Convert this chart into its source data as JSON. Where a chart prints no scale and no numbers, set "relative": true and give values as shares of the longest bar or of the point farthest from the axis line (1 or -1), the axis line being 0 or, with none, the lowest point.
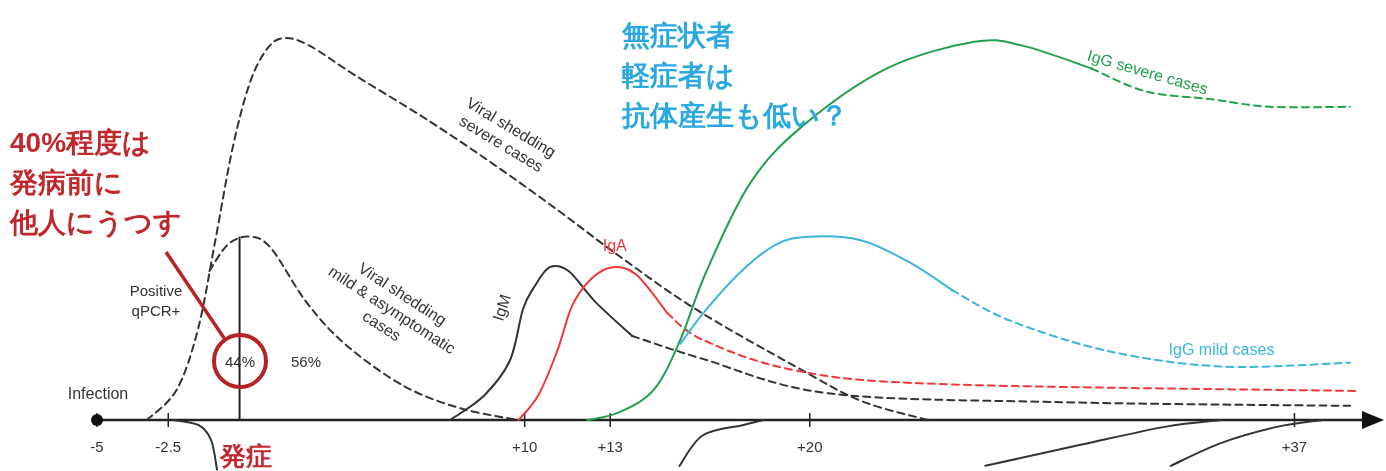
{
  "chart_data": {
    "type": "line",
    "relative": true,
    "xlim": [
      -5,
      40
    ],
    "xticks": [
      -5,
      -2.5,
      {
        "value": 10,
        "label": "+10"
      },
      {
        "value": 13,
        "label": "+13"
      },
      {
        "value": 20,
        "label": "+20"
      },
      {
        "value": 37,
        "label": "+37"
      }
    ],
    "ref_lines": [
      {
        "axis": "x",
        "value": 0,
        "label": "発症"
      }
    ],
    "annotations": [
      "40%程度は",
      "発病前に",
      "他人にうつす",
      "無症状者",
      "軽症者は",
      "抗体産生も低い？",
      "Positive\nqPCR+",
      "44%",
      "56%",
      "Infection"
    ],
    "series": [
      {
        "name": "Viral shedding severe cases",
        "color": "#333333",
        "line_style": "dashed",
        "x": [
          -3.25,
          -2.2,
          -1.45,
          -0.85,
          -0.25,
          0.35,
          0.95,
          1.55,
          2.45,
          4.1,
          6.5,
          8.9,
          11.15,
          13.3,
          16,
          19.5,
          21.8,
          24.15
        ],
        "values": [
          0,
          0.08,
          0.24,
          0.47,
          0.71,
          0.88,
          0.97,
          1.0,
          0.98,
          0.9,
          0.79,
          0.67,
          0.55,
          0.43,
          0.29,
          0.14,
          0.05,
          0
        ]
      },
      {
        "name": "Viral shedding mild & asymptomatic cases",
        "color": "#333333",
        "line_style": "dashed",
        "x": [
          -1.06,
          -0.4,
          0.35,
          1.1,
          2.33,
          3.68,
          5.74,
          7.78,
          9.79
        ],
        "values": [
          0.39,
          0.46,
          0.48,
          0.45,
          0.31,
          0.2,
          0.09,
          0.03,
          0
        ]
      },
      {
        "name": "IgM",
        "color": "#333333",
        "line_style": "solid",
        "x": [
          7.39,
          8.59,
          9.49,
          9.94,
          10.35,
          10.88,
          11.54,
          12.47,
          13.77
        ],
        "values": [
          0,
          0.065,
          0.157,
          0.29,
          0.35,
          0.4,
          0.39,
          0.31,
          0.22
        ]
      },
      {
        "color": "#333333",
        "line_style": "dashed",
        "x": [
          13.77,
          16.25,
          20.65,
          28.54,
          38.95
        ],
        "values": [
          0.22,
          0.16,
          0.07,
          0.047,
          0.037
        ]
      },
      {
        "name": "IgA",
        "color": "#f0373c",
        "line_style": "solid",
        "x": [
          9.79,
          10.48,
          11.14,
          11.67,
          12.34,
          13.09,
          13.92,
          15.0
        ],
        "values": [
          0,
          0.065,
          0.18,
          0.3,
          0.37,
          0.4,
          0.38,
          0.28
        ]
      },
      {
        "color": "#f0373c",
        "line_style": "dashed",
        "x": [
          15.0,
          16.25,
          19.48,
          24.6,
          39.17
        ],
        "values": [
          0.28,
          0.21,
          0.13,
          0.094,
          0.076
        ]
      },
      {
        "name": "IgG severe cases",
        "color": "#22a04b",
        "line_style": "solid",
        "x": [
          12.2,
          13.31,
          14.54,
          15.46,
          16.38,
          17.91,
          19.75,
          22.69,
          25.77,
          27.46,
          29.89
        ],
        "values": [
          0,
          0.02,
          0.08,
          0.21,
          0.39,
          0.62,
          0.77,
          0.92,
          0.99,
          0.98,
          0.92
        ]
      },
      {
        "color": "#22a04b",
        "line_style": "dashed",
        "x": [
          29.89,
          31.8,
          34.05,
          36.13,
          38.95
        ],
        "values": [
          0.92,
          0.86,
          0.84,
          0.82,
          0.82
        ]
      },
      {
        "name": "IgG mild cases",
        "color": "#3cb4dc",
        "line_style": "solid",
        "x": [
          15.46,
          16.38,
          17.61,
          18.83,
          20,
          21.82,
          23.56,
          24.99
        ],
        "values": [
          0.2,
          0.29,
          0.39,
          0.46,
          0.48,
          0.47,
          0.41,
          0.34
        ]
      },
      {
        "color": "#3cb4dc",
        "line_style": "dashed",
        "x": [
          24.99,
          27.03,
          30.49,
          34.44,
          38.95
        ],
        "values": [
          0.34,
          0.26,
          0.18,
          0.14,
          0.15
        ]
      },
      {
        "color": "#333333",
        "line_style": "solid",
        "x": [
          -2.35,
          -1.45,
          -1.0,
          -0.79
        ],
        "values": [
          0,
          -0.013,
          -0.052,
          -0.13
        ]
      },
      {
        "color": "#333333",
        "line_style": "solid",
        "x": [
          15.43,
          16.25,
          17.67,
          18.37
        ],
        "values": [
          -0.12,
          -0.04,
          -0.013,
          0
        ]
      },
      {
        "color": "#333333",
        "line_style": "solid",
        "x": [
          26.16,
          29.5,
          32.45,
          34.44
        ],
        "values": [
          -0.12,
          -0.065,
          -0.018,
          0
        ]
      },
      {
        "color": "#333333",
        "line_style": "solid",
        "x": [
          32.66,
          34.44,
          36.39,
          38
        ],
        "values": [
          -0.12,
          -0.06,
          -0.018,
          0
        ]
      }
    ]
  }
}
